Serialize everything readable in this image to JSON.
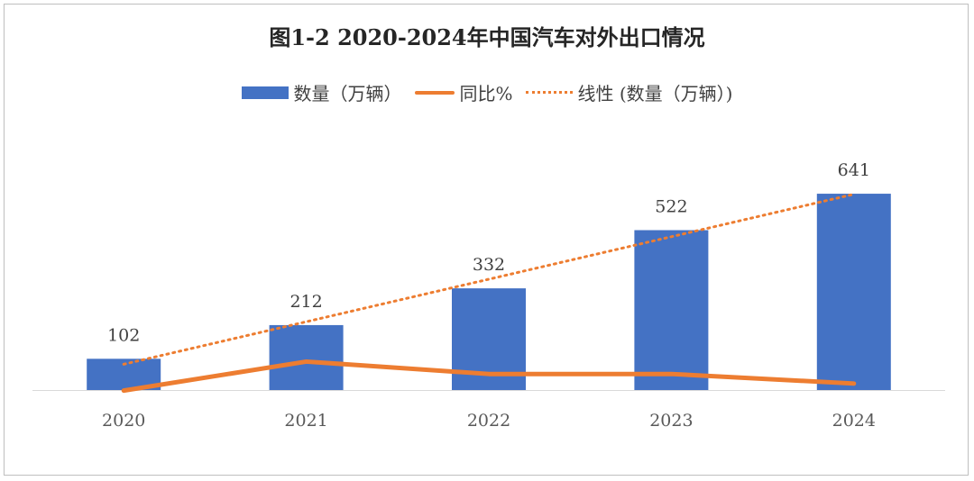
{
  "chart_data": {
    "type": "bar",
    "title": "图1-2 2020-2024年中国汽车对外出口情况",
    "categories": [
      "2020",
      "2021",
      "2022",
      "2023",
      "2024"
    ],
    "series": [
      {
        "name": "数量（万辆）",
        "kind": "bar",
        "values": [
          102,
          212,
          332,
          522,
          641
        ],
        "color": "#4472C4"
      },
      {
        "name": "同比%",
        "kind": "line",
        "values": [
          -2,
          101,
          57,
          57,
          23
        ],
        "color": "#ED7D31"
      },
      {
        "name": "线性 (数量（万辆）)",
        "kind": "trendline",
        "color": "#ED7D31"
      }
    ],
    "legend_position": "top",
    "grid": false
  }
}
